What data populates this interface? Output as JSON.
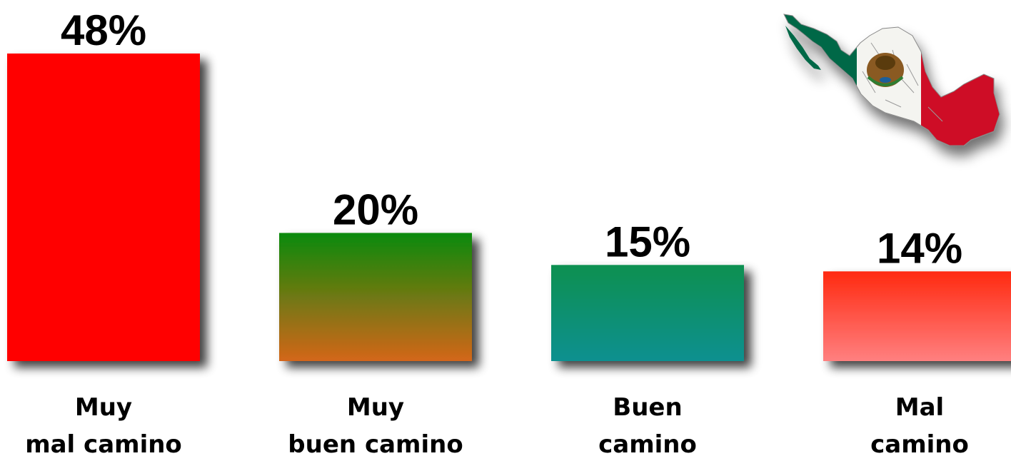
{
  "chart_data": {
    "type": "bar",
    "categories": [
      [
        "Muy",
        "mal camino"
      ],
      [
        "Muy",
        "buen camino"
      ],
      [
        "Buen",
        "camino"
      ],
      [
        "Mal",
        "camino"
      ]
    ],
    "values": [
      48,
      20,
      15,
      14
    ],
    "value_labels": [
      "48%",
      "20%",
      "15%",
      "14%"
    ],
    "bar_colors": [
      {
        "top": "#ff0000",
        "bottom": "#ff0000"
      },
      {
        "top": "#0a8a0a",
        "bottom": "#d4661a"
      },
      {
        "top": "#0a9050",
        "bottom": "#0a9090"
      },
      {
        "top": "#ff2a10",
        "bottom": "#ff8080"
      }
    ],
    "ylim": [
      0,
      48
    ],
    "grid": false,
    "legend": "none",
    "title": "",
    "xlabel": "",
    "ylabel": ""
  },
  "decor": {
    "map_icon": "mexico-flag-map-icon",
    "flag_colors": {
      "green": "#006847",
      "white": "#f4f4f0",
      "red": "#ce1126"
    }
  }
}
